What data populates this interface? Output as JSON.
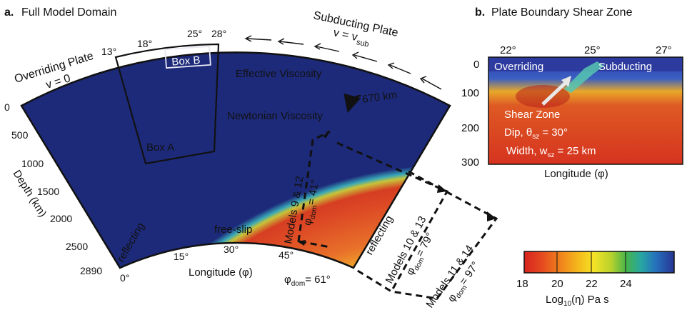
{
  "panel_a": {
    "label": "a.",
    "title": "Full Model Domain",
    "overriding_plate": "Overriding Plate",
    "v_zero": "v = 0",
    "subducting_plate": "Subducting Plate",
    "v_sub_v": "v = v",
    "v_sub_sub": "sub",
    "box_a": "Box A",
    "box_b": "Box B",
    "effective_viscosity": "Effective Viscosity",
    "newtonian_viscosity": "Newtonian Viscosity",
    "km_670": "670 km",
    "free_slip": "free-slip",
    "reflecting_left": "reflecting",
    "reflecting_right": "reflecting",
    "depth_axis_label": "Depth (km)",
    "longitude_axis_label": "Longitude (φ)",
    "depth_ticks": [
      "0",
      "500",
      "1000",
      "1500",
      "2000",
      "2500",
      "2890"
    ],
    "top_angle_ticks": [
      "13°",
      "18°",
      "25°",
      "28°"
    ],
    "bottom_angle_ticks": [
      "0°",
      "15°",
      "30°",
      "45°"
    ],
    "models": [
      {
        "name": "Models 9 & 12",
        "phi_prefix": "φ",
        "phi_sub": "dom",
        "phi_value": "= 41°"
      },
      {
        "name": "Models 10 & 13",
        "phi_prefix": "φ",
        "phi_sub": "dom",
        "phi_value": "= 79°"
      },
      {
        "name": "Models 11 & 14",
        "phi_prefix": "φ",
        "phi_sub": "dom",
        "phi_value": "= 97°"
      }
    ],
    "phi_dom_61_prefix": "φ",
    "phi_dom_61_sub": "dom",
    "phi_dom_61_value": "= 61°"
  },
  "panel_b": {
    "label": "b.",
    "title": "Plate Boundary Shear Zone",
    "top_ticks": [
      "22°",
      "25°",
      "27°"
    ],
    "depth_ticks": [
      "0",
      "100",
      "200",
      "300"
    ],
    "overriding": "Overriding",
    "subducting": "Subducting",
    "shear_zone": "Shear Zone",
    "dip_text": "Dip, θ",
    "dip_sub": "sz",
    "dip_value": " = 30°",
    "width_text": "Width, w",
    "width_sub": "sz",
    "width_value": " = 25 km",
    "longitude_label": "Longitude (φ)"
  },
  "colorbar": {
    "ticks": [
      "18",
      "20",
      "22",
      "24"
    ],
    "label_prefix": "Log",
    "label_sub": "10",
    "label_suffix": "(η) Pa s",
    "colors": [
      "#d7231f",
      "#e8581f",
      "#f39a1d",
      "#f6c41e",
      "#f7e626",
      "#c9d92c",
      "#4fb84a",
      "#2aa99a",
      "#2a7fc1",
      "#283592"
    ]
  }
}
